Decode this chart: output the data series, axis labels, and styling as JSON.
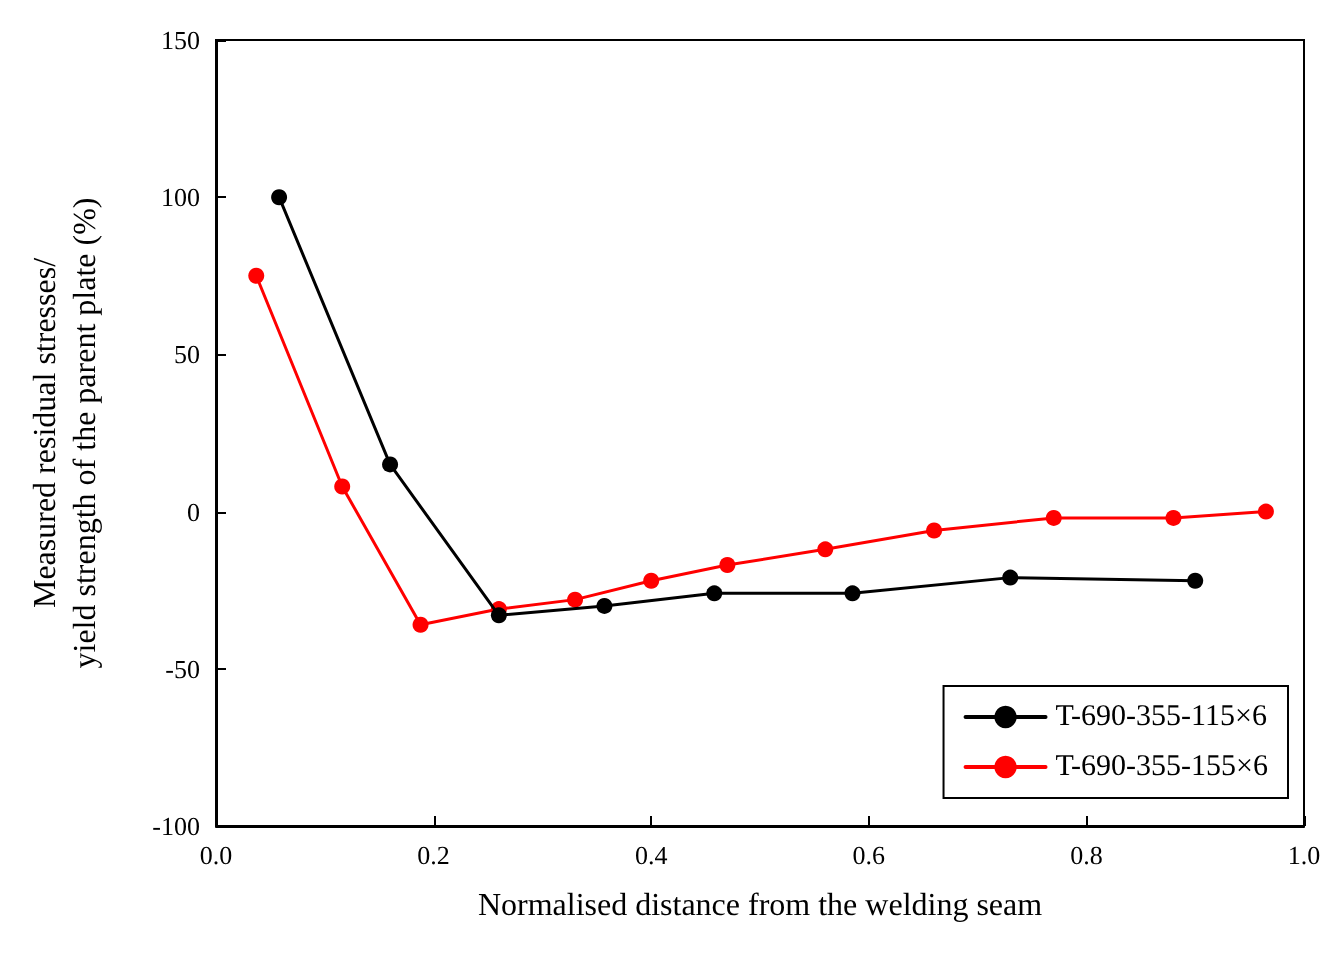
{
  "chart_data": {
    "type": "line",
    "xlabel": "Normalised distance from the welding seam",
    "ylabel": "Measured residual stresses/\nyield strength of the parent plate (%)",
    "series": [
      {
        "name": "T-690-355-115×6",
        "color": "#000000",
        "x": [
          0.058,
          0.16,
          0.26,
          0.357,
          0.458,
          0.585,
          0.73,
          0.9
        ],
        "values": [
          100,
          15,
          -33,
          -30,
          -26,
          -26,
          -21,
          -22
        ]
      },
      {
        "name": "T-690-355-155×6",
        "color": "#ff0000",
        "x": [
          0.037,
          0.116,
          0.188,
          0.26,
          0.33,
          0.4,
          0.47,
          0.56,
          0.66,
          0.77,
          0.88,
          0.965
        ],
        "values": [
          75,
          8,
          -36,
          -31,
          -28,
          -22,
          -17,
          -12,
          -6,
          -2,
          -2,
          0
        ]
      }
    ],
    "xlim": [
      0,
      1
    ],
    "xticks": [
      {
        "value": 0,
        "label": "0.0"
      },
      {
        "value": 0.2,
        "label": "0.2"
      },
      {
        "value": 0.4,
        "label": "0.4"
      },
      {
        "value": 0.6,
        "label": "0.6"
      },
      {
        "value": 0.8,
        "label": "0.8"
      },
      {
        "value": 1,
        "label": "1.0"
      }
    ],
    "ylim": [
      -100,
      150
    ],
    "yticks": [
      -100,
      -50,
      0,
      50,
      100,
      150
    ],
    "grid": false,
    "legend": "bottom right",
    "marker": "circle",
    "line_style": "solid"
  }
}
